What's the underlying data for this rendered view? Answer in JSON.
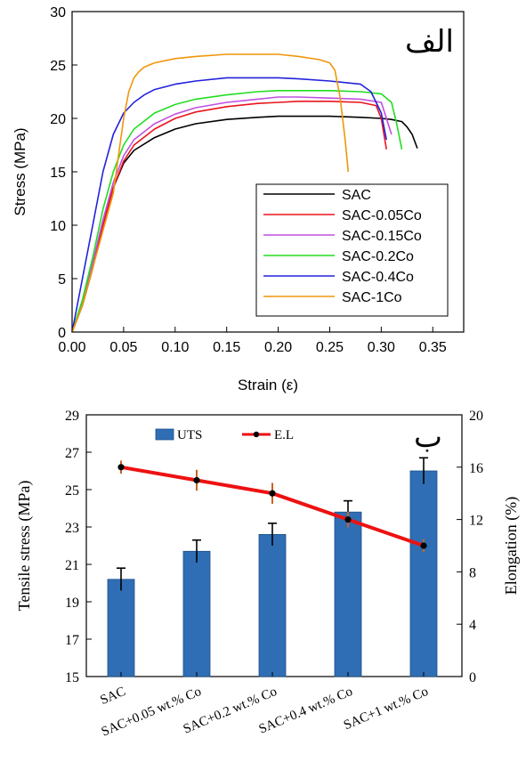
{
  "chart_data": [
    {
      "type": "line",
      "panel_label": "الف",
      "xlabel": "Strain (ε)",
      "ylabel": "Stress (MPa)",
      "xlim": [
        0,
        0.38
      ],
      "ylim": [
        0,
        30
      ],
      "x_ticks": [
        "0.00",
        "0.05",
        "0.10",
        "0.15",
        "0.20",
        "0.25",
        "0.30",
        "0.35"
      ],
      "y_ticks": [
        "0",
        "5",
        "10",
        "15",
        "20",
        "25",
        "30"
      ],
      "grid": false,
      "legend_position": "lower-right",
      "series": [
        {
          "name": "SAC",
          "color": "#000000",
          "x": [
            0,
            0.01,
            0.02,
            0.03,
            0.04,
            0.05,
            0.06,
            0.08,
            0.1,
            0.12,
            0.15,
            0.18,
            0.2,
            0.22,
            0.25,
            0.28,
            0.3,
            0.31,
            0.32,
            0.325,
            0.33,
            0.335
          ],
          "y": [
            0,
            2.5,
            6,
            10,
            13.5,
            15.8,
            17,
            18.2,
            19,
            19.5,
            19.9,
            20.1,
            20.2,
            20.2,
            20.2,
            20.1,
            20,
            19.9,
            19.7,
            19.2,
            18.5,
            17.2
          ]
        },
        {
          "name": "SAC-0.05Co",
          "color": "#e8141c",
          "x": [
            0,
            0.01,
            0.02,
            0.03,
            0.04,
            0.05,
            0.06,
            0.08,
            0.1,
            0.12,
            0.15,
            0.18,
            0.2,
            0.22,
            0.25,
            0.28,
            0.295,
            0.3,
            0.305
          ],
          "y": [
            0,
            2.5,
            6,
            10,
            13.5,
            16,
            17.5,
            19,
            20,
            20.6,
            21.1,
            21.4,
            21.5,
            21.6,
            21.6,
            21.5,
            21.2,
            20,
            17.1
          ]
        },
        {
          "name": "SAC-0.15Co",
          "color": "#c050e0",
          "x": [
            0,
            0.01,
            0.02,
            0.03,
            0.04,
            0.05,
            0.06,
            0.08,
            0.1,
            0.12,
            0.15,
            0.18,
            0.2,
            0.22,
            0.25,
            0.28,
            0.3,
            0.305,
            0.31
          ],
          "y": [
            0,
            2.8,
            6.5,
            10.5,
            14,
            16.5,
            18,
            19.5,
            20.4,
            21,
            21.5,
            21.8,
            22,
            22,
            21.9,
            21.8,
            21.5,
            20,
            18.5
          ]
        },
        {
          "name": "SAC-0.2Co",
          "color": "#22dd22",
          "x": [
            0,
            0.01,
            0.02,
            0.03,
            0.04,
            0.05,
            0.06,
            0.08,
            0.1,
            0.12,
            0.15,
            0.18,
            0.2,
            0.22,
            0.25,
            0.28,
            0.3,
            0.31,
            0.315,
            0.32
          ],
          "y": [
            0,
            3,
            7,
            11.5,
            15,
            17.5,
            19,
            20.5,
            21.3,
            21.8,
            22.2,
            22.5,
            22.6,
            22.6,
            22.6,
            22.5,
            22.3,
            21.5,
            19.5,
            17.1
          ]
        },
        {
          "name": "SAC-0.4Co",
          "color": "#2222dd",
          "x": [
            0,
            0.01,
            0.02,
            0.03,
            0.04,
            0.05,
            0.06,
            0.07,
            0.08,
            0.1,
            0.12,
            0.15,
            0.18,
            0.2,
            0.22,
            0.25,
            0.28,
            0.29,
            0.3,
            0.305
          ],
          "y": [
            0,
            5,
            10,
            15,
            18.5,
            20.5,
            21.5,
            22.2,
            22.7,
            23.2,
            23.5,
            23.8,
            23.8,
            23.8,
            23.7,
            23.5,
            23.2,
            22.5,
            20.5,
            18
          ]
        },
        {
          "name": "SAC-1Co",
          "color": "#f0960a",
          "x": [
            0,
            0.01,
            0.02,
            0.03,
            0.04,
            0.045,
            0.05,
            0.055,
            0.06,
            0.065,
            0.07,
            0.08,
            0.1,
            0.12,
            0.15,
            0.18,
            0.2,
            0.22,
            0.24,
            0.25,
            0.255,
            0.26,
            0.265,
            0.268
          ],
          "y": [
            0,
            2.5,
            6,
            9.5,
            13,
            16.5,
            20,
            22.5,
            23.8,
            24.4,
            24.8,
            25.2,
            25.6,
            25.8,
            26,
            26,
            26,
            25.8,
            25.5,
            25.2,
            24.5,
            22,
            18,
            15
          ]
        }
      ]
    },
    {
      "type": "bar",
      "panel_label": "ب",
      "categories": [
        "SAC",
        "SAC+0.05 wt.% Co",
        "SAC+0.2 wt.% Co",
        "SAC+0.4 wt.% Co",
        "SAC+1 wt.% Co"
      ],
      "ylabel": "Tensile stress (MPa)",
      "y2label": "Elongation  (%)",
      "ylim": [
        15,
        29
      ],
      "y2lim": [
        0,
        20
      ],
      "y_ticks": [
        "15",
        "17",
        "19",
        "21",
        "23",
        "25",
        "27",
        "29"
      ],
      "y2_ticks": [
        "0",
        "4",
        "8",
        "12",
        "16",
        "20"
      ],
      "legend_position": "top-left",
      "series": [
        {
          "name": "UTS",
          "kind": "bar",
          "axis": "left",
          "color": "#2f6eb5",
          "values": [
            20.2,
            21.7,
            22.6,
            23.8,
            26.0
          ],
          "errors": [
            0.6,
            0.6,
            0.6,
            0.6,
            0.7
          ]
        },
        {
          "name": "E.L",
          "kind": "line",
          "axis": "right",
          "color": "#ee1111",
          "values": [
            16,
            15,
            14,
            12,
            10
          ],
          "errors": [
            0.5,
            0.8,
            0.8,
            0.6,
            0.5
          ]
        }
      ]
    }
  ]
}
